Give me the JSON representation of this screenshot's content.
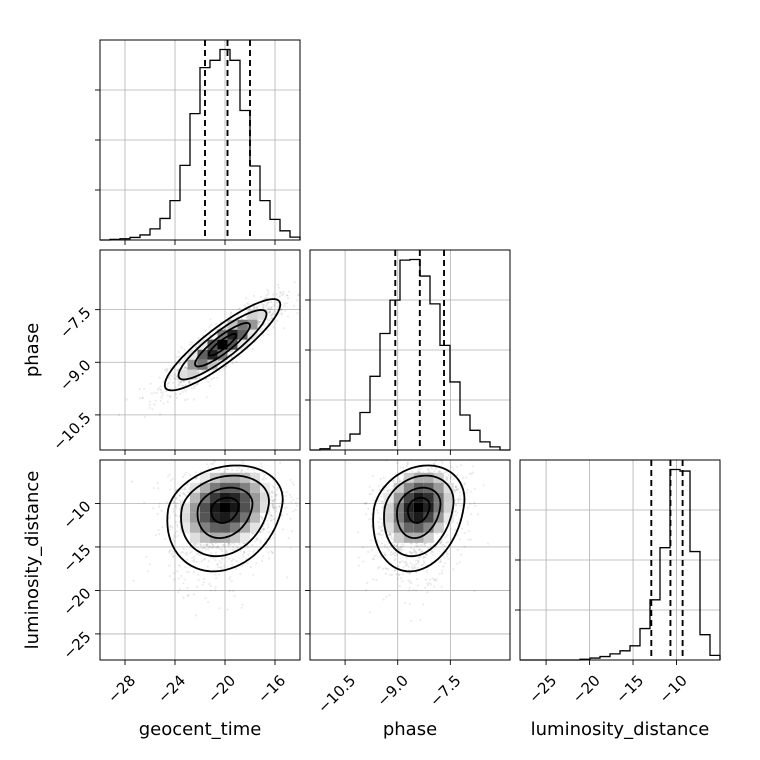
{
  "chart_data": {
    "type": "corner",
    "parameters": [
      "geocent_time",
      "phase",
      "luminosity_distance"
    ],
    "axis_labels": {
      "x": [
        "geocent_time",
        "phase",
        "luminosity_distance"
      ],
      "y": [
        "",
        "phase",
        "luminosity_distance"
      ]
    },
    "ranges": {
      "geocent_time": [
        -30.0,
        -14.0
      ],
      "phase": [
        -11.5,
        -5.8
      ],
      "luminosity_distance": [
        -28.0,
        -5.0
      ]
    },
    "ticks": {
      "geocent_time": {
        "values": [
          -28,
          -24,
          -20,
          -16
        ],
        "labels": [
          "−28",
          "−24",
          "−20",
          "−16"
        ]
      },
      "phase": {
        "values": [
          -10.5,
          -9.0,
          -7.5
        ],
        "labels": [
          "−10.5",
          "−9.0",
          "−7.5"
        ]
      },
      "luminosity_distance": {
        "values": [
          -25,
          -20,
          -15,
          -10
        ],
        "labels": [
          "−25",
          "−20",
          "−15",
          "−10"
        ]
      }
    },
    "y_ticks_right_column": {
      "values": [
        -10,
        -15,
        -20,
        -25
      ],
      "labels": [
        "−10",
        "−15",
        "−20",
        "−25"
      ]
    },
    "quantiles": {
      "geocent_time": [
        -21.6,
        -19.8,
        -18.0
      ],
      "phase": [
        -9.07,
        -8.37,
        -7.68
      ],
      "luminosity_distance": [
        -12.9,
        -10.7,
        -9.3
      ]
    },
    "histograms": {
      "geocent_time": {
        "edges": [
          -30.0,
          -29.2,
          -28.4,
          -27.6,
          -26.8,
          -26.0,
          -25.2,
          -24.4,
          -23.6,
          -22.8,
          -22.0,
          -21.2,
          -20.4,
          -19.6,
          -18.8,
          -18.0,
          -17.2,
          -16.4,
          -15.6,
          -14.8,
          -14.0
        ],
        "counts": [
          0.0,
          0.2,
          0.4,
          0.8,
          1.6,
          3.5,
          6.8,
          12.4,
          23.5,
          39.8,
          54.3,
          56.6,
          60.0,
          56.6,
          40.8,
          23.3,
          12.4,
          6.5,
          2.9,
          0.9
        ]
      },
      "phase": {
        "edges": [
          -11.5,
          -11.215,
          -10.93,
          -10.645,
          -10.36,
          -10.075,
          -9.79,
          -9.505,
          -9.22,
          -8.935,
          -8.65,
          -8.365,
          -8.08,
          -7.795,
          -7.51,
          -7.225,
          -6.94,
          -6.655,
          -6.37,
          -6.085,
          -5.8
        ],
        "counts": [
          0.0,
          0.4,
          1.3,
          2.9,
          5.1,
          12.0,
          23.6,
          37.3,
          48.0,
          60.8,
          61.0,
          55.7,
          46.8,
          33.5,
          21.8,
          11.2,
          6.3,
          2.6,
          1.0,
          0.0
        ]
      },
      "luminosity_distance": {
        "edges": [
          -28.0,
          -26.85,
          -25.7,
          -24.55,
          -23.4,
          -22.25,
          -21.1,
          -19.95,
          -18.8,
          -17.65,
          -16.5,
          -15.35,
          -14.2,
          -13.05,
          -11.9,
          -10.75,
          -9.6,
          -8.45,
          -7.3,
          -6.15,
          -5.0
        ],
        "counts": [
          0.0,
          0.0,
          0.0,
          0.0,
          0.0,
          0.0,
          0.2,
          0.5,
          0.9,
          1.6,
          2.4,
          3.7,
          8.2,
          15.7,
          29.3,
          49.7,
          49.3,
          28.3,
          6.6,
          1.2
        ]
      }
    },
    "density_2d": {
      "phase_vs_geocent_time": {
        "correlation": "positive",
        "peak": {
          "x": -20.2,
          "y": -8.5
        }
      },
      "luminosity_distance_vs_geocent_time": {
        "correlation": "weak",
        "peak": {
          "x": -20.0,
          "y": -10.5
        }
      },
      "luminosity_distance_vs_phase": {
        "correlation": "weak",
        "peak": {
          "x": -8.4,
          "y": -10.5
        }
      }
    },
    "grid": true
  }
}
